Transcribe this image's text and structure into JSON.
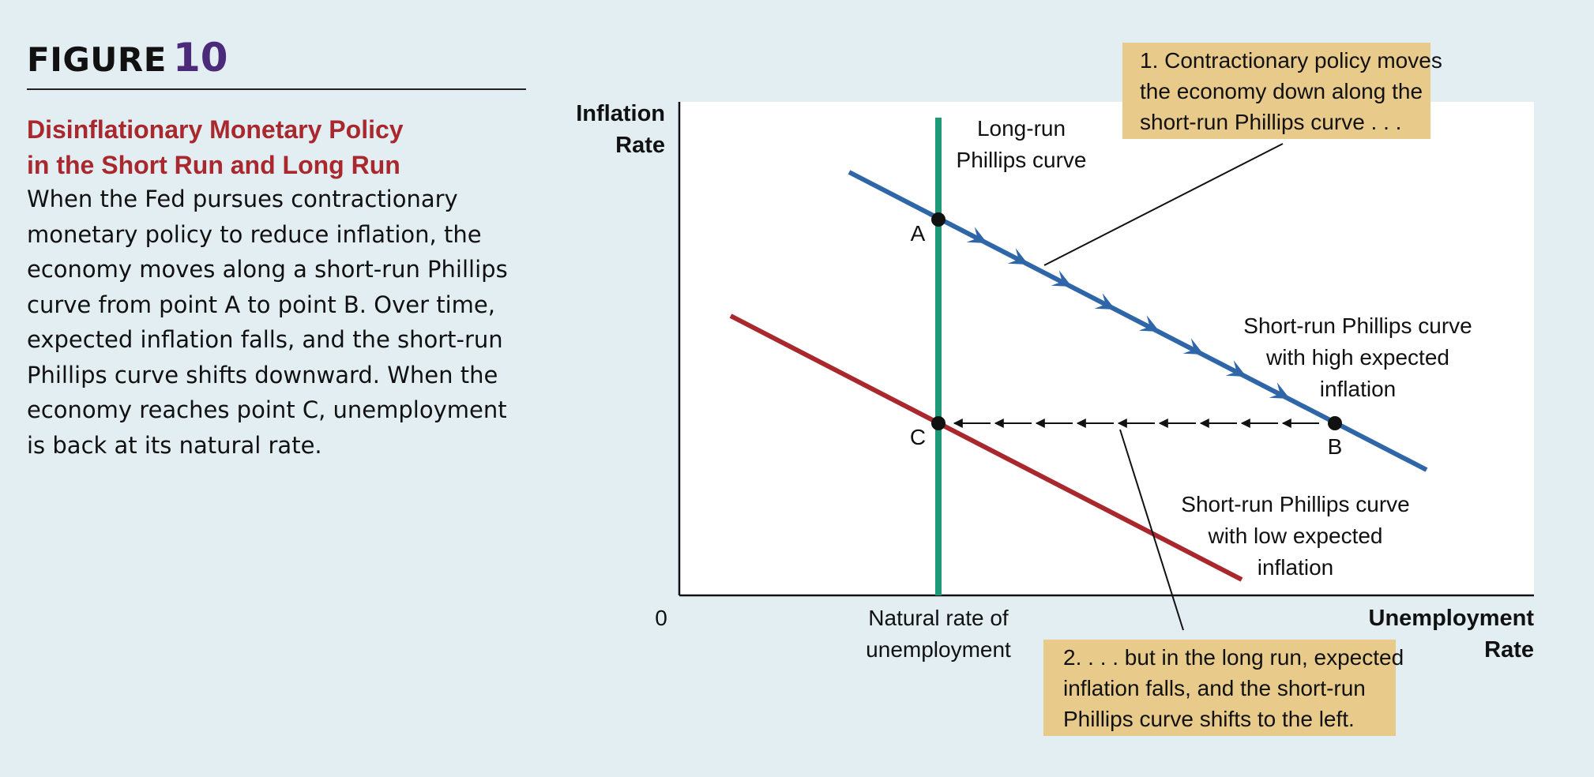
{
  "figure": {
    "word": "FIGURE",
    "number": "10"
  },
  "title_lines": [
    "Disinflationary Monetary Policy",
    "in the Short Run and Long Run"
  ],
  "caption_lines": [
    "When the Fed pursues contractionary",
    "monetary policy to reduce inflation, the",
    "economy moves along a short-run Phillips",
    "curve from point A to point B. Over time,",
    "expected inflation falls, and the short-run",
    "Phillips curve shifts downward. When the",
    "economy reaches point C, unemployment",
    "is back at its natural rate."
  ],
  "diagram": {
    "y_axis_label": [
      "Inflation",
      "Rate"
    ],
    "x_axis_label": [
      "Unemployment",
      "Rate"
    ],
    "origin": "0",
    "natural_rate_label": [
      "Natural rate of",
      "unemployment"
    ],
    "lrpc_label": [
      "Long-run",
      "Phillips curve"
    ],
    "srpc_high_label": [
      "Short-run Phillips curve",
      "with high expected",
      "inflation"
    ],
    "srpc_low_label": [
      "Short-run Phillips curve",
      "with low expected",
      "inflation"
    ],
    "points": {
      "a": "A",
      "b": "B",
      "c": "C"
    },
    "note1": [
      "1. Contractionary policy moves",
      "the economy down along the",
      "short-run Phillips curve . . ."
    ],
    "note2": [
      "2. . . . but in the long run, expected",
      "inflation falls, and the short-run",
      "Phillips curve shifts to the left."
    ],
    "colors": {
      "lrpc": "#1f9a78",
      "srpc_high": "#2e66a8",
      "srpc_low": "#a8282d",
      "note_bg": "#e8cb8a",
      "plot_bg": "#ffffff"
    }
  }
}
